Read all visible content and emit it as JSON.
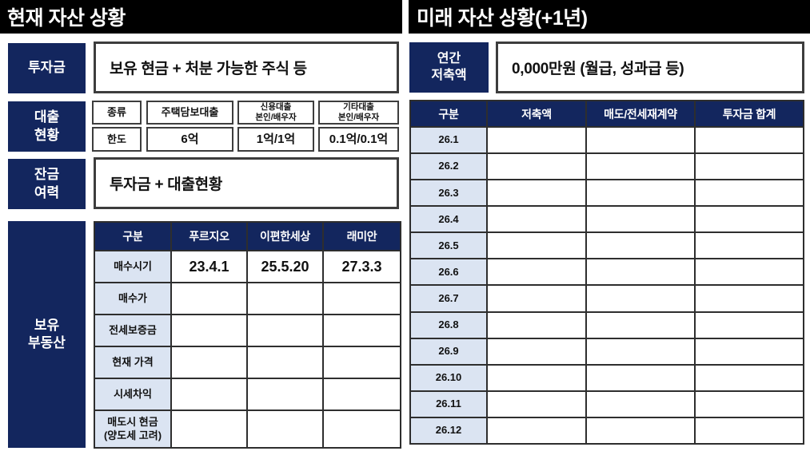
{
  "colors": {
    "navy": "#13265e",
    "label_blue": "#dbe4f2",
    "box_border": "#3d3d3d",
    "grid_line": "#2e2e2e",
    "title_bg": "#000000"
  },
  "left": {
    "title": "현재 자산 상황",
    "investment": {
      "label": "투자금",
      "value": "보유 현금 + 처분 가능한 주식 등"
    },
    "loan": {
      "label": "대출\n현황",
      "type_header": "종류",
      "limit_header": "한도",
      "items": [
        {
          "name": "주택담보대출",
          "value": "6억"
        },
        {
          "name": "신용대출\n본인/배우자",
          "value": "1억/1억"
        },
        {
          "name": "기타대출\n본인/배우자",
          "value": "0.1억/0.1억"
        }
      ]
    },
    "balance": {
      "label": "잔금\n여력",
      "value": "투자금 + 대출현황"
    },
    "property": {
      "label": "보유\n부동산",
      "table": {
        "headers": [
          "구분",
          "푸르지오",
          "이편한세상",
          "래미안"
        ],
        "rows": [
          {
            "label": "매수시기",
            "values": [
              "23.4.1",
              "25.5.20",
              "27.3.3"
            ]
          },
          {
            "label": "매수가",
            "values": [
              "",
              "",
              ""
            ]
          },
          {
            "label": "전세보증금",
            "values": [
              "",
              "",
              ""
            ]
          },
          {
            "label": "현재 가격",
            "values": [
              "",
              "",
              ""
            ]
          },
          {
            "label": "시세차익",
            "values": [
              "",
              "",
              ""
            ]
          },
          {
            "label": "매도시 현금\n(양도세 고려)",
            "values": [
              "",
              "",
              ""
            ]
          }
        ]
      }
    }
  },
  "right": {
    "title": "미래 자산 상황(+1년)",
    "savings": {
      "label": "연간\n저축액",
      "value": "0,000만원 (월급, 성과급 등)"
    },
    "table": {
      "headers": [
        "구분",
        "저축액",
        "매도/전세재계약",
        "투자금 합계"
      ],
      "rows": [
        {
          "label": "26.1",
          "values": [
            "",
            "",
            ""
          ]
        },
        {
          "label": "26.2",
          "values": [
            "",
            "",
            ""
          ]
        },
        {
          "label": "26.3",
          "values": [
            "",
            "",
            ""
          ]
        },
        {
          "label": "26.4",
          "values": [
            "",
            "",
            ""
          ]
        },
        {
          "label": "26.5",
          "values": [
            "",
            "",
            ""
          ]
        },
        {
          "label": "26.6",
          "values": [
            "",
            "",
            ""
          ]
        },
        {
          "label": "26.7",
          "values": [
            "",
            "",
            ""
          ]
        },
        {
          "label": "26.8",
          "values": [
            "",
            "",
            ""
          ]
        },
        {
          "label": "26.9",
          "values": [
            "",
            "",
            ""
          ]
        },
        {
          "label": "26.10",
          "values": [
            "",
            "",
            ""
          ]
        },
        {
          "label": "26.11",
          "values": [
            "",
            "",
            ""
          ]
        },
        {
          "label": "26.12",
          "values": [
            "",
            "",
            ""
          ]
        }
      ]
    }
  }
}
